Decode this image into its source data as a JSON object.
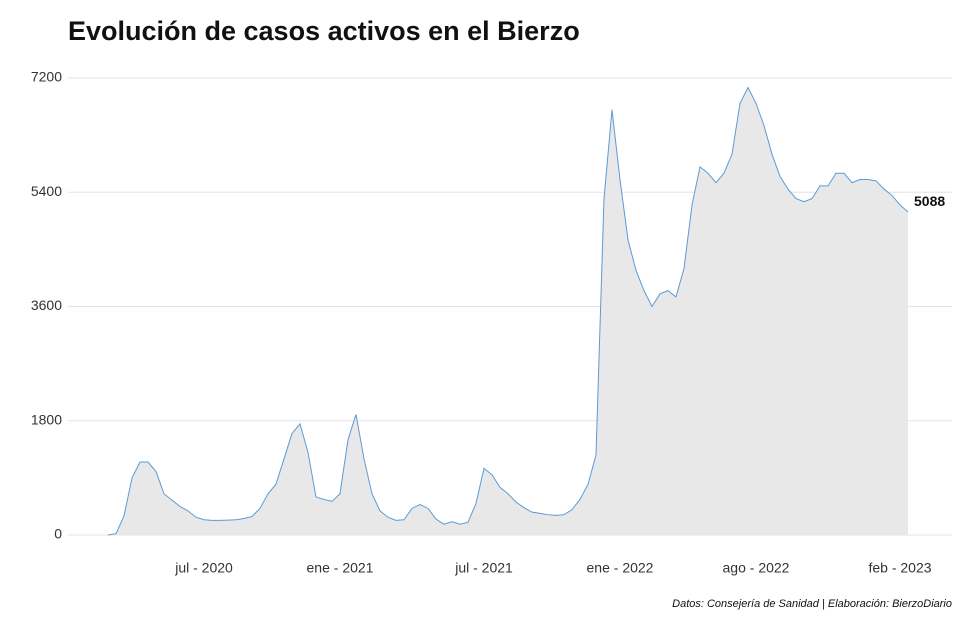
{
  "chart_data": {
    "type": "area",
    "title": "Evolución de casos activos en el Bierzo",
    "source": "Datos: Consejería de Sanidad | Elaboración: BierzoDiario",
    "categories": [
      null,
      null,
      null,
      null,
      null,
      null,
      null,
      null,
      null,
      null,
      null,
      null,
      "jul - 2020",
      null,
      null,
      null,
      null,
      null,
      null,
      null,
      null,
      null,
      null,
      null,
      null,
      null,
      null,
      null,
      null,
      "ene - 2021",
      null,
      null,
      null,
      null,
      null,
      null,
      null,
      null,
      null,
      null,
      null,
      null,
      null,
      null,
      null,
      null,
      null,
      "jul - 2021",
      null,
      null,
      null,
      null,
      null,
      null,
      null,
      null,
      null,
      null,
      null,
      null,
      null,
      null,
      null,
      null,
      "ene - 2022",
      null,
      null,
      null,
      null,
      null,
      null,
      null,
      null,
      null,
      null,
      null,
      null,
      null,
      null,
      null,
      null,
      "ago - 2022",
      null,
      null,
      null,
      null,
      null,
      null,
      null,
      null,
      null,
      null,
      null,
      null,
      null,
      null,
      null,
      null,
      null,
      "feb - 2023",
      null
    ],
    "series": [
      {
        "name": "Casos activos",
        "color": "#5b9bd5",
        "fill": "#e8e8e8",
        "values": [
          0,
          20,
          300,
          900,
          1150,
          1150,
          1000,
          650,
          550,
          450,
          380,
          280,
          240,
          230,
          230,
          235,
          240,
          260,
          290,
          420,
          650,
          800,
          1200,
          1600,
          1750,
          1300,
          600,
          560,
          530,
          650,
          1500,
          1900,
          1200,
          650,
          380,
          280,
          230,
          240,
          420,
          480,
          420,
          250,
          170,
          210,
          170,
          200,
          500,
          1050,
          950,
          750,
          650,
          520,
          430,
          360,
          340,
          320,
          310,
          320,
          400,
          560,
          800,
          1260,
          5300,
          6700,
          5600,
          4650,
          4170,
          3850,
          3600,
          3800,
          3850,
          3750,
          4200,
          5200,
          5800,
          5700,
          5550,
          5700,
          6000,
          6800,
          7050,
          6800,
          6450,
          6000,
          5650,
          5450,
          5300,
          5250,
          5300,
          5500,
          5500,
          5700,
          5700,
          5550,
          5600,
          5600,
          5580,
          5450,
          5350,
          5200,
          5088
        ]
      }
    ],
    "ylim": [
      0,
      7200
    ],
    "yticks": [
      0,
      1800,
      3600,
      5400,
      7200
    ],
    "grid": true
  }
}
